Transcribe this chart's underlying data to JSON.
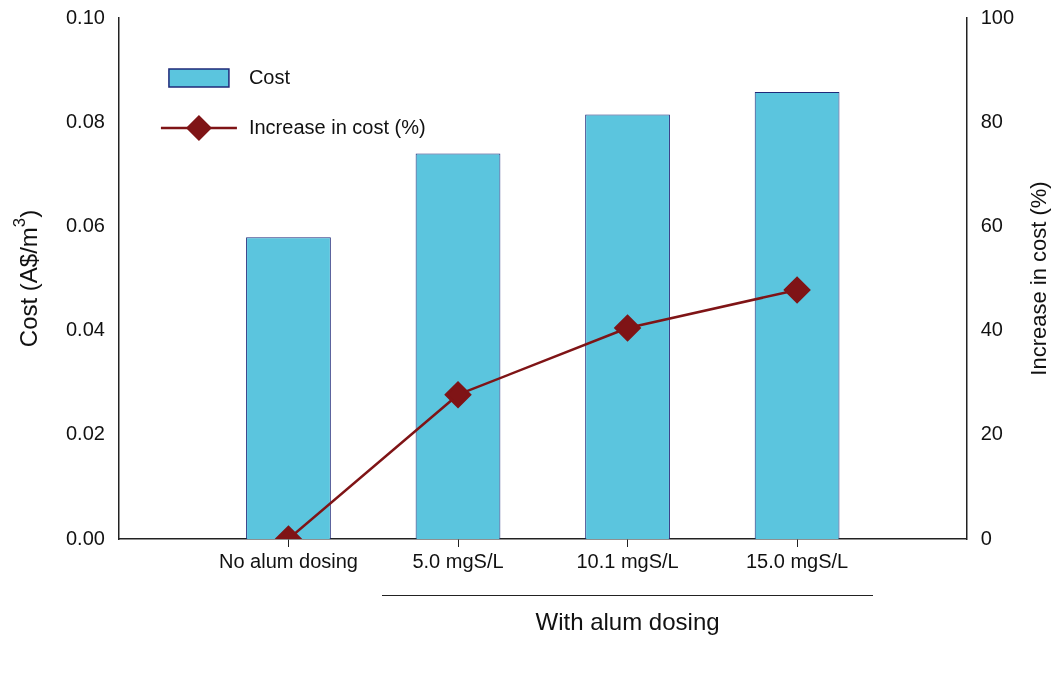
{
  "chart_data": {
    "type": "bar",
    "categories": [
      "No alum dosing",
      "5.0 mgS/L",
      "10.1 mgS/L",
      "15.0 mgS/L"
    ],
    "ylabel": "Cost (A$/m$^{3}$)",
    "y2label": "Increase in cost (%)",
    "series": [
      {
        "name": "Cost",
        "color": "#5bc5de",
        "values": [
          0.0579,
          0.074,
          0.0815,
          0.0858
        ]
      },
      {
        "name": "Increase in cost (%)",
        "type": "line",
        "axis": "y2",
        "color": "#7f1416",
        "marker": "diamond",
        "values": [
          0,
          27.7,
          40.5,
          47.8
        ]
      }
    ],
    "ylim": [
      0,
      0.1
    ],
    "yticks": [
      {
        "value": 0,
        "label": "0.00"
      },
      {
        "value": 0.02,
        "label": "0.02"
      },
      {
        "value": 0.04,
        "label": "0.04"
      },
      {
        "value": 0.06,
        "label": "0.06"
      },
      {
        "value": 0.08,
        "label": "0.08"
      },
      {
        "value": 0.1,
        "label": "0.10"
      }
    ],
    "y2lim": [
      0,
      100
    ],
    "y2ticks": [
      0,
      20,
      40,
      60,
      80,
      100
    ],
    "annotations": [
      "With alum dosing"
    ],
    "legend": "top left",
    "grid": false
  }
}
